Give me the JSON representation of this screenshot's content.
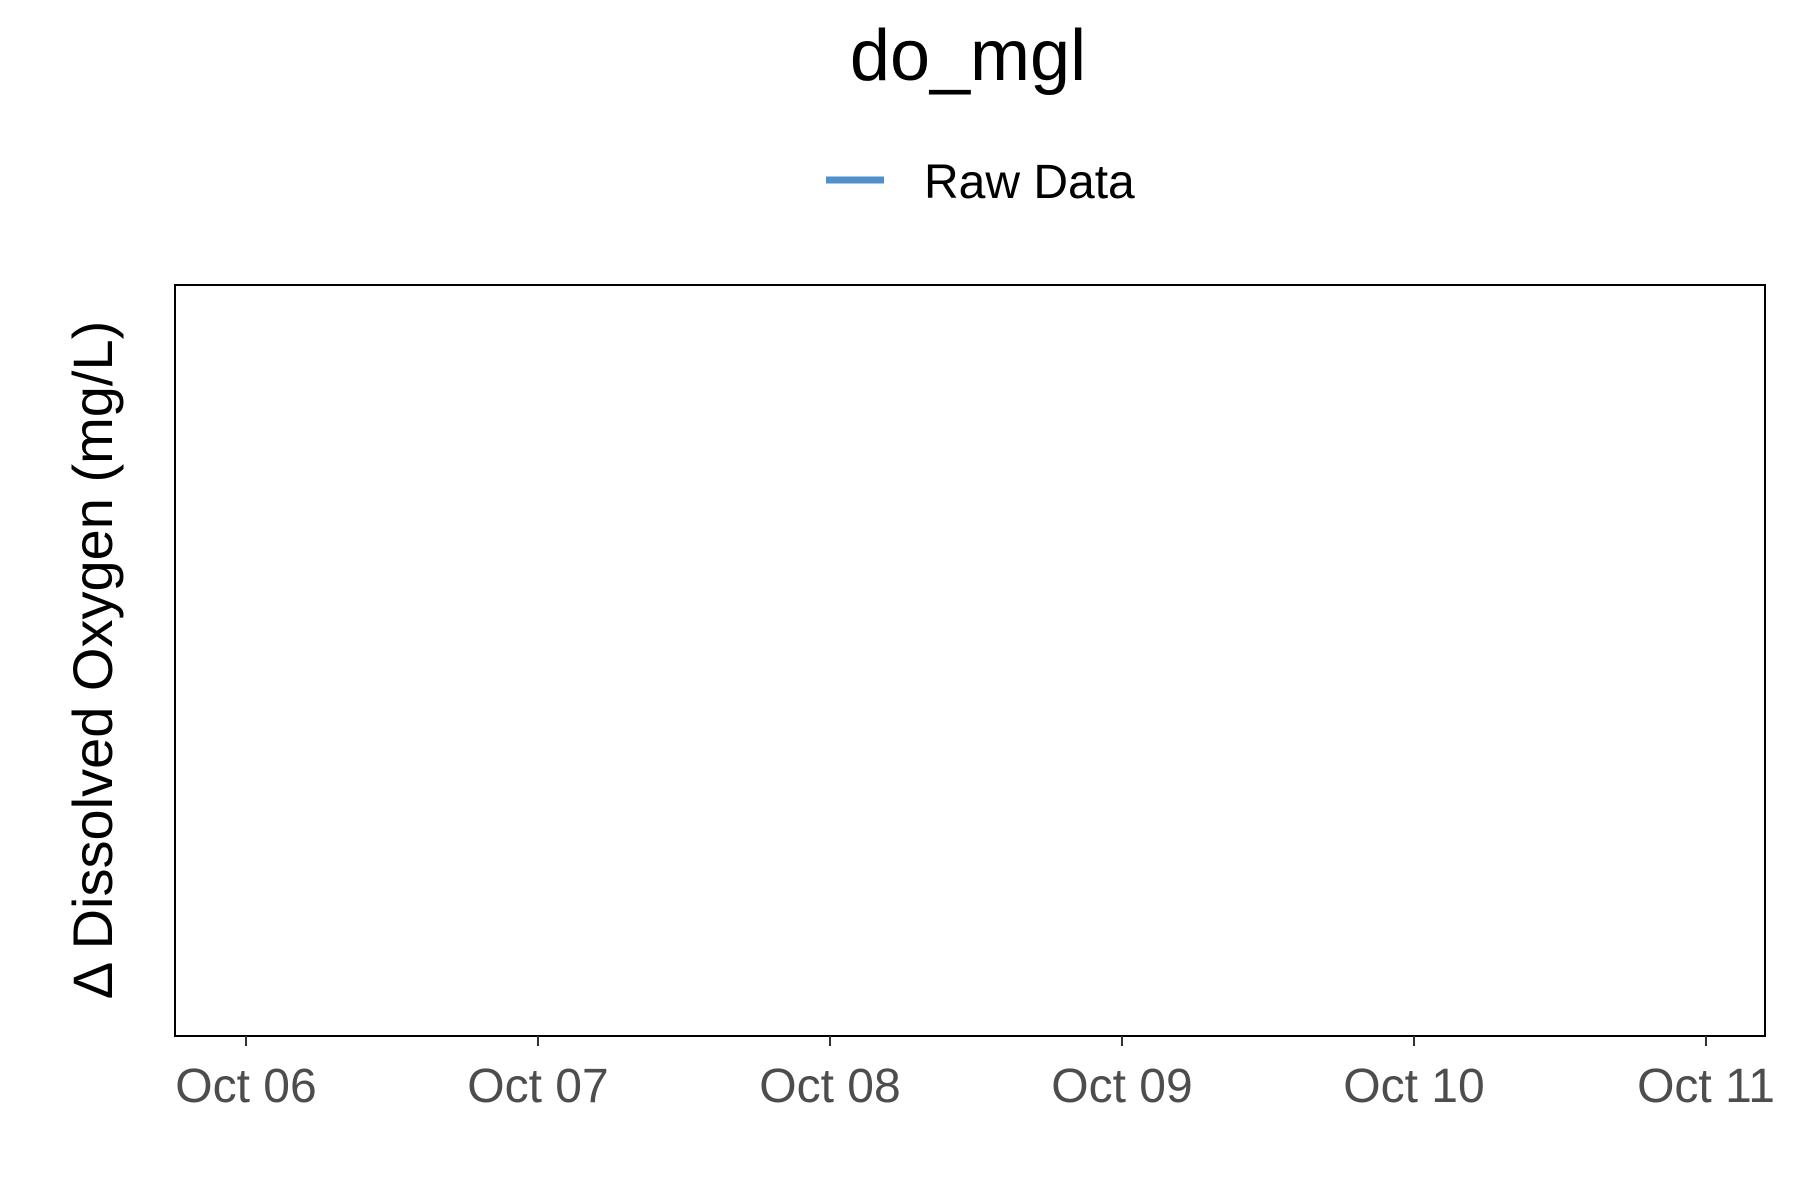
{
  "chart_data": {
    "type": "line",
    "title": "do_mgl",
    "xlabel": "",
    "ylabel": "Δ Dissolved Oxygen (mg/L)",
    "legend": {
      "position": "top",
      "entries": [
        {
          "label": "Raw Data",
          "color": "#4f90cb"
        }
      ]
    },
    "x_ticks": [
      "Oct 06",
      "Oct 07",
      "Oct 08",
      "Oct 09",
      "Oct 10",
      "Oct 11"
    ],
    "y_ticks": [],
    "grid": false,
    "series": [
      {
        "name": "Raw Data",
        "color": "#4f90cb",
        "x": [],
        "y": []
      }
    ]
  }
}
